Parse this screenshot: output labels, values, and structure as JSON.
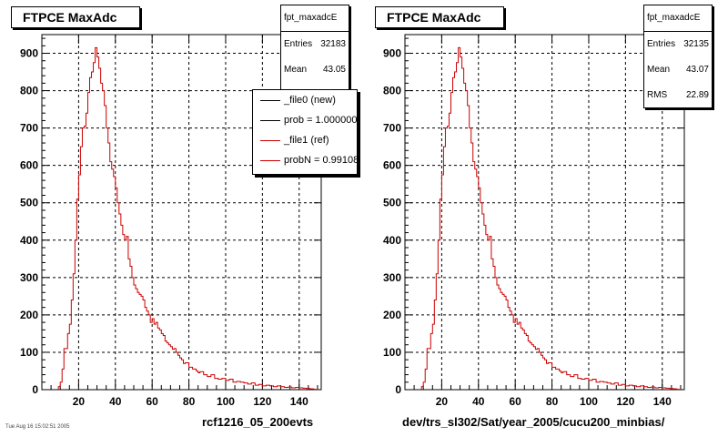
{
  "chart_data": [
    {
      "type": "histogram",
      "title": "FTPCE MaxAdc",
      "xlim": [
        0,
        152
      ],
      "ylim": [
        0,
        950
      ],
      "xticks": [
        20,
        40,
        60,
        80,
        100,
        120,
        140
      ],
      "yticks": [
        0,
        100,
        200,
        300,
        400,
        500,
        600,
        700,
        800,
        900
      ],
      "grid": true,
      "colors": {
        "hist": "#cc0000"
      },
      "stats": {
        "name": "fpt_maxadcE",
        "entries_label": "Entries",
        "entries": "32183",
        "mean_label": "Mean",
        "mean": "43.05"
      },
      "legend": {
        "placement": "top-right",
        "entries": [
          {
            "label": "_file0 (new)",
            "color": "#000000"
          },
          {
            "label": "prob = 1.000000",
            "color": "#000000"
          },
          {
            "label": "_file1 (ref)",
            "color": "#cc0000"
          },
          {
            "label": "probN = 0.991083",
            "color": "#cc0000"
          }
        ]
      },
      "footer": "rcf1216_05_200evts",
      "stamp": "Tue Aug 16 15:02:51 2005",
      "x": [
        [
          9,
          10
        ],
        [
          10,
          11
        ],
        [
          11,
          12
        ],
        [
          12,
          14
        ],
        [
          14,
          15
        ],
        [
          15,
          16
        ],
        [
          16,
          17
        ],
        [
          17,
          18
        ],
        [
          18,
          19
        ],
        [
          19,
          20
        ],
        [
          20,
          21
        ],
        [
          21,
          22
        ],
        [
          22,
          23
        ],
        [
          23,
          24
        ],
        [
          24,
          25
        ],
        [
          25,
          26
        ],
        [
          26,
          27
        ],
        [
          27,
          28
        ],
        [
          28,
          29
        ],
        [
          29,
          30
        ],
        [
          30,
          31
        ],
        [
          31,
          32
        ],
        [
          32,
          33
        ],
        [
          33,
          34
        ],
        [
          34,
          35
        ],
        [
          35,
          36
        ],
        [
          36,
          37
        ],
        [
          37,
          38
        ],
        [
          38,
          39
        ],
        [
          39,
          40
        ],
        [
          40,
          41
        ],
        [
          41,
          42
        ],
        [
          42,
          43
        ],
        [
          43,
          44
        ],
        [
          44,
          45
        ],
        [
          45,
          46
        ],
        [
          46,
          47
        ],
        [
          47,
          48
        ],
        [
          48,
          49
        ],
        [
          49,
          50
        ],
        [
          50,
          51
        ],
        [
          51,
          52
        ],
        [
          52,
          53
        ],
        [
          53,
          54
        ],
        [
          54,
          55
        ],
        [
          55,
          56
        ],
        [
          56,
          57
        ],
        [
          57,
          58
        ],
        [
          58,
          59
        ],
        [
          59,
          60
        ],
        [
          60,
          61
        ],
        [
          61,
          62
        ],
        [
          62,
          63
        ],
        [
          63,
          64
        ],
        [
          64,
          65
        ],
        [
          65,
          66
        ],
        [
          66,
          67
        ],
        [
          67,
          68
        ],
        [
          68,
          69
        ],
        [
          69,
          70
        ],
        [
          70,
          71
        ],
        [
          71,
          72
        ],
        [
          72,
          73
        ],
        [
          73,
          74
        ],
        [
          74,
          75
        ],
        [
          75,
          76
        ],
        [
          76,
          77
        ],
        [
          77,
          78
        ],
        [
          78,
          80
        ],
        [
          80,
          82
        ],
        [
          82,
          84
        ],
        [
          84,
          85
        ],
        [
          85,
          86
        ],
        [
          86,
          88
        ],
        [
          88,
          90
        ],
        [
          90,
          92
        ],
        [
          92,
          94
        ],
        [
          94,
          96
        ],
        [
          96,
          98
        ],
        [
          98,
          100
        ],
        [
          100,
          102
        ],
        [
          102,
          104
        ],
        [
          104,
          106
        ],
        [
          106,
          108
        ],
        [
          108,
          110
        ],
        [
          110,
          112
        ],
        [
          112,
          114
        ],
        [
          114,
          116
        ],
        [
          116,
          118
        ],
        [
          118,
          120
        ],
        [
          120,
          122
        ],
        [
          122,
          124
        ],
        [
          124,
          126
        ],
        [
          126,
          128
        ],
        [
          128,
          130
        ],
        [
          130,
          132
        ],
        [
          132,
          134
        ],
        [
          134,
          136
        ],
        [
          136,
          138
        ],
        [
          138,
          140
        ],
        [
          140,
          142
        ],
        [
          142,
          144
        ],
        [
          144,
          146
        ],
        [
          146,
          148
        ],
        [
          148,
          150
        ]
      ],
      "values": [
        8,
        20,
        55,
        110,
        150,
        175,
        240,
        310,
        400,
        510,
        575,
        650,
        700,
        705,
        740,
        795,
        835,
        850,
        875,
        915,
        890,
        860,
        820,
        800,
        760,
        700,
        660,
        610,
        590,
        570,
        540,
        500,
        470,
        440,
        415,
        400,
        410,
        350,
        330,
        300,
        280,
        270,
        260,
        255,
        250,
        240,
        220,
        210,
        200,
        180,
        190,
        175,
        180,
        165,
        160,
        150,
        145,
        130,
        125,
        120,
        115,
        108,
        110,
        100,
        92,
        85,
        80,
        70,
        72,
        60,
        55,
        50,
        45,
        48,
        40,
        35,
        40,
        30,
        28,
        30,
        25,
        28,
        20,
        22,
        20,
        18,
        15,
        18,
        12,
        14,
        10,
        12,
        10,
        8,
        10,
        8,
        6,
        7,
        5,
        6,
        5,
        4,
        3,
        2,
        1
      ],
      "unused": null
    },
    {
      "type": "histogram",
      "title": "FTPCE MaxAdc",
      "xlim": [
        0,
        152
      ],
      "ylim": [
        0,
        950
      ],
      "xticks": [
        20,
        40,
        60,
        80,
        100,
        120,
        140
      ],
      "yticks": [
        0,
        100,
        200,
        300,
        400,
        500,
        600,
        700,
        800,
        900
      ],
      "grid": true,
      "colors": {
        "hist": "#cc0000"
      },
      "stats": {
        "name": "fpt_maxadcE",
        "entries_label": "Entries",
        "entries": "32135",
        "mean_label": "Mean",
        "mean": "43.07",
        "rms_label": "RMS",
        "rms": "22.89"
      },
      "footer": "dev/trs_sl302/Sat/year_2005/cucu200_minbias/",
      "x": [
        [
          9,
          10
        ],
        [
          10,
          11
        ],
        [
          11,
          12
        ],
        [
          12,
          14
        ],
        [
          14,
          15
        ],
        [
          15,
          16
        ],
        [
          16,
          17
        ],
        [
          17,
          18
        ],
        [
          18,
          19
        ],
        [
          19,
          20
        ],
        [
          20,
          21
        ],
        [
          21,
          22
        ],
        [
          22,
          23
        ],
        [
          23,
          24
        ],
        [
          24,
          25
        ],
        [
          25,
          26
        ],
        [
          26,
          27
        ],
        [
          27,
          28
        ],
        [
          28,
          29
        ],
        [
          29,
          30
        ],
        [
          30,
          31
        ],
        [
          31,
          32
        ],
        [
          32,
          33
        ],
        [
          33,
          34
        ],
        [
          34,
          35
        ],
        [
          35,
          36
        ],
        [
          36,
          37
        ],
        [
          37,
          38
        ],
        [
          38,
          39
        ],
        [
          39,
          40
        ],
        [
          40,
          41
        ],
        [
          41,
          42
        ],
        [
          42,
          43
        ],
        [
          43,
          44
        ],
        [
          44,
          45
        ],
        [
          45,
          46
        ],
        [
          46,
          47
        ],
        [
          47,
          48
        ],
        [
          48,
          49
        ],
        [
          49,
          50
        ],
        [
          50,
          51
        ],
        [
          51,
          52
        ],
        [
          52,
          53
        ],
        [
          53,
          54
        ],
        [
          54,
          55
        ],
        [
          55,
          56
        ],
        [
          56,
          57
        ],
        [
          57,
          58
        ],
        [
          58,
          59
        ],
        [
          59,
          60
        ],
        [
          60,
          61
        ],
        [
          61,
          62
        ],
        [
          62,
          63
        ],
        [
          63,
          64
        ],
        [
          64,
          65
        ],
        [
          65,
          66
        ],
        [
          66,
          67
        ],
        [
          67,
          68
        ],
        [
          68,
          69
        ],
        [
          69,
          70
        ],
        [
          70,
          71
        ],
        [
          71,
          72
        ],
        [
          72,
          73
        ],
        [
          73,
          74
        ],
        [
          74,
          75
        ],
        [
          75,
          76
        ],
        [
          76,
          77
        ],
        [
          77,
          78
        ],
        [
          78,
          80
        ],
        [
          80,
          82
        ],
        [
          82,
          84
        ],
        [
          84,
          85
        ],
        [
          85,
          86
        ],
        [
          86,
          88
        ],
        [
          88,
          90
        ],
        [
          90,
          92
        ],
        [
          92,
          94
        ],
        [
          94,
          96
        ],
        [
          96,
          98
        ],
        [
          98,
          100
        ],
        [
          100,
          102
        ],
        [
          102,
          104
        ],
        [
          104,
          106
        ],
        [
          106,
          108
        ],
        [
          108,
          110
        ],
        [
          110,
          112
        ],
        [
          112,
          114
        ],
        [
          114,
          116
        ],
        [
          116,
          118
        ],
        [
          118,
          120
        ],
        [
          120,
          122
        ],
        [
          122,
          124
        ],
        [
          124,
          126
        ],
        [
          126,
          128
        ],
        [
          128,
          130
        ],
        [
          130,
          132
        ],
        [
          132,
          134
        ],
        [
          134,
          136
        ],
        [
          136,
          138
        ],
        [
          138,
          140
        ],
        [
          140,
          142
        ],
        [
          142,
          144
        ],
        [
          144,
          146
        ],
        [
          146,
          148
        ],
        [
          148,
          150
        ]
      ],
      "values": [
        8,
        20,
        55,
        110,
        150,
        175,
        240,
        310,
        400,
        510,
        575,
        650,
        700,
        705,
        740,
        795,
        835,
        850,
        875,
        915,
        890,
        860,
        820,
        800,
        760,
        700,
        660,
        610,
        590,
        570,
        540,
        500,
        470,
        440,
        415,
        400,
        410,
        350,
        330,
        300,
        280,
        270,
        260,
        255,
        250,
        240,
        220,
        210,
        200,
        180,
        190,
        175,
        180,
        165,
        160,
        150,
        145,
        130,
        125,
        120,
        115,
        108,
        110,
        100,
        92,
        85,
        80,
        70,
        72,
        60,
        55,
        50,
        45,
        48,
        40,
        35,
        40,
        30,
        28,
        30,
        25,
        28,
        20,
        22,
        20,
        18,
        15,
        18,
        12,
        14,
        10,
        12,
        10,
        8,
        10,
        8,
        6,
        7,
        5,
        6,
        5,
        4,
        3,
        2,
        1
      ]
    }
  ]
}
